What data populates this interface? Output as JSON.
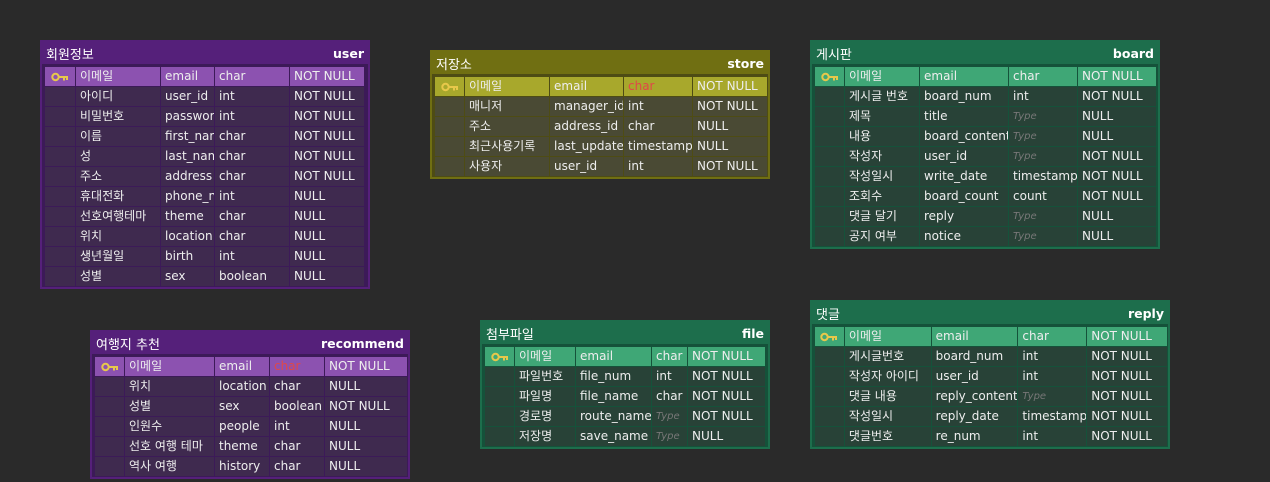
{
  "tables": [
    {
      "id": "user",
      "theme": "purple",
      "logical_name": "회원정보",
      "physical_name": "user",
      "columns": [
        {
          "logical": "이메일",
          "physical": "email",
          "type": "char",
          "null": "NOT NULL",
          "pk": true
        },
        {
          "logical": "아이디",
          "physical": "user_id",
          "type": "int",
          "null": "NOT NULL"
        },
        {
          "logical": "비밀번호",
          "physical": "password",
          "type": "int",
          "null": "NOT NULL"
        },
        {
          "logical": "이름",
          "physical": "first_name",
          "type": "char",
          "null": "NOT NULL"
        },
        {
          "logical": "성",
          "physical": "last_name",
          "type": "char",
          "null": "NOT NULL"
        },
        {
          "logical": "주소",
          "physical": "address",
          "type": "char",
          "null": "NOT NULL"
        },
        {
          "logical": "휴대전화",
          "physical": "phone_num",
          "type": "int",
          "null": "NULL"
        },
        {
          "logical": "선호여행테마",
          "physical": "theme",
          "type": "char",
          "null": "NULL"
        },
        {
          "logical": "위치",
          "physical": "location",
          "type": "char",
          "null": "NULL"
        },
        {
          "logical": "생년월일",
          "physical": "birth",
          "type": "int",
          "null": "NULL"
        },
        {
          "logical": "성별",
          "physical": "sex",
          "type": "boolean",
          "null": "NULL"
        }
      ]
    },
    {
      "id": "store",
      "theme": "olive",
      "logical_name": "저장소",
      "physical_name": "store",
      "columns": [
        {
          "logical": "이메일",
          "physical": "email",
          "type": "char",
          "type_red": true,
          "null": "NOT NULL",
          "pk": true
        },
        {
          "logical": "매니저",
          "physical": "manager_id",
          "type": "int",
          "null": "NOT NULL"
        },
        {
          "logical": "주소",
          "physical": "address_id",
          "type": "char",
          "null": "NULL"
        },
        {
          "logical": "최근사용기록",
          "physical": "last_update",
          "type": "timestamp",
          "null": "NULL"
        },
        {
          "logical": "사용자",
          "physical": "user_id",
          "type": "int",
          "null": "NOT NULL"
        }
      ]
    },
    {
      "id": "board",
      "theme": "green",
      "logical_name": "게시판",
      "physical_name": "board",
      "columns": [
        {
          "logical": "이메일",
          "physical": "email",
          "type": "char",
          "null": "NOT NULL",
          "pk": true
        },
        {
          "logical": "게시글 번호",
          "physical": "board_num",
          "type": "int",
          "null": "NOT NULL"
        },
        {
          "logical": "제목",
          "physical": "title",
          "type": "Type",
          "type_placeholder": true,
          "null": "NULL"
        },
        {
          "logical": "내용",
          "physical": "board_content",
          "type": "Type",
          "type_placeholder": true,
          "null": "NULL"
        },
        {
          "logical": "작성자",
          "physical": "user_id",
          "type": "Type",
          "type_placeholder": true,
          "null": "NOT NULL"
        },
        {
          "logical": "작성일시",
          "physical": "write_date",
          "type": "timestamp",
          "null": "NOT NULL"
        },
        {
          "logical": "조회수",
          "physical": "board_count",
          "type": "count",
          "null": "NOT NULL"
        },
        {
          "logical": "댓글 달기",
          "physical": "reply",
          "type": "Type",
          "type_placeholder": true,
          "null": "NULL"
        },
        {
          "logical": "공지 여부",
          "physical": "notice",
          "type": "Type",
          "type_placeholder": true,
          "null": "NULL"
        }
      ]
    },
    {
      "id": "recommend",
      "theme": "purple",
      "logical_name": "여행지 추천",
      "physical_name": "recommend",
      "columns": [
        {
          "logical": "이메일",
          "physical": "email",
          "type": "char",
          "type_red": true,
          "null": "NOT NULL",
          "pk": true
        },
        {
          "logical": "위치",
          "physical": "location",
          "type": "char",
          "null": "NULL"
        },
        {
          "logical": "성별",
          "physical": "sex",
          "type": "boolean",
          "null": "NOT NULL"
        },
        {
          "logical": "인원수",
          "physical": "people",
          "type": "int",
          "null": "NULL"
        },
        {
          "logical": "선호 여행 테마",
          "physical": "theme",
          "type": "char",
          "null": "NULL"
        },
        {
          "logical": "역사 여행",
          "physical": "history",
          "type": "char",
          "null": "NULL"
        }
      ]
    },
    {
      "id": "file",
      "theme": "green",
      "logical_name": "첨부파일",
      "physical_name": "file",
      "columns": [
        {
          "logical": "이메일",
          "physical": "email",
          "type": "char",
          "null": "NOT NULL",
          "pk": true
        },
        {
          "logical": "파일번호",
          "physical": "file_num",
          "type": "int",
          "null": "NOT NULL"
        },
        {
          "logical": "파일명",
          "physical": "file_name",
          "type": "char",
          "null": "NOT NULL"
        },
        {
          "logical": "경로명",
          "physical": "route_name",
          "type": "Type",
          "type_placeholder": true,
          "null": "NOT NULL"
        },
        {
          "logical": "저장명",
          "physical": "save_name",
          "type": "Type",
          "type_placeholder": true,
          "null": "NULL"
        }
      ]
    },
    {
      "id": "reply",
      "theme": "green",
      "logical_name": "댓글",
      "physical_name": "reply",
      "columns": [
        {
          "logical": "이메일",
          "physical": "email",
          "type": "char",
          "null": "NOT NULL",
          "pk": true
        },
        {
          "logical": "게시글번호",
          "physical": "board_num",
          "type": "int",
          "null": "NOT NULL"
        },
        {
          "logical": "작성자 아이디",
          "physical": "user_id",
          "type": "int",
          "null": "NOT NULL"
        },
        {
          "logical": "댓글 내용",
          "physical": "reply_content",
          "type": "Type",
          "type_placeholder": true,
          "null": "NOT NULL"
        },
        {
          "logical": "작성일시",
          "physical": "reply_date",
          "type": "timestamp",
          "null": "NOT NULL"
        },
        {
          "logical": "댓글번호",
          "physical": "re_num",
          "type": "int",
          "null": "NOT NULL"
        }
      ]
    }
  ]
}
